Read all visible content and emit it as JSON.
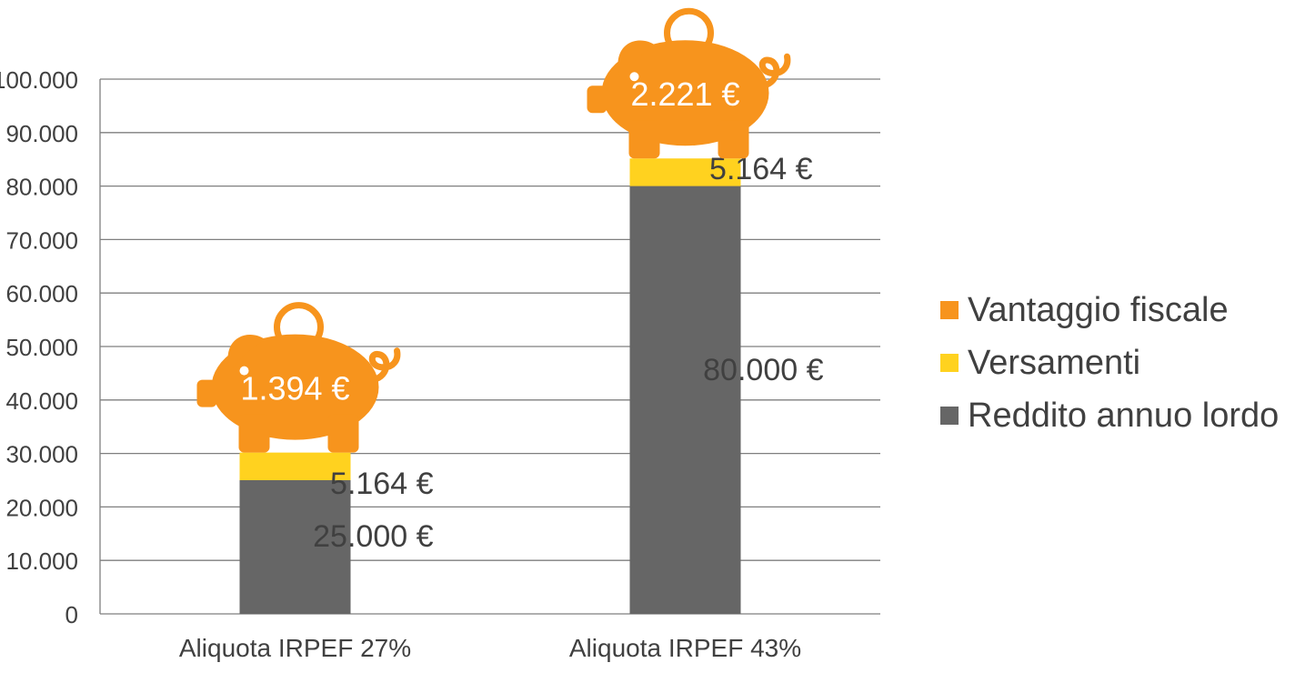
{
  "chart_data": {
    "type": "bar",
    "stacked": true,
    "categories": [
      "Aliquota IRPEF 27%",
      "Aliquota IRPEF 43%"
    ],
    "series": [
      {
        "name": "Reddito annuo lordo",
        "values": [
          25000,
          80000
        ],
        "color": "#666666",
        "labels": [
          "25.000 €",
          "80.000 €"
        ]
      },
      {
        "name": "Versamenti",
        "values": [
          5164,
          5164
        ],
        "color": "#FFD21F",
        "labels": [
          "5.164 €",
          "5.164 €"
        ]
      },
      {
        "name": "Vantaggio fiscale",
        "values": [
          1394,
          2221
        ],
        "color": "#F7941D",
        "labels": [
          "1.394 €",
          "2.221 €"
        ],
        "marker": "piggy-bank-icon"
      }
    ],
    "ylim": [
      0,
      100000
    ],
    "yticks": [
      0,
      10000,
      20000,
      30000,
      40000,
      50000,
      60000,
      70000,
      80000,
      90000,
      100000
    ],
    "ytick_labels": [
      "0",
      "10.000",
      "20.000",
      "30.000",
      "40.000",
      "50.000",
      "60.000",
      "70.000",
      "80.000",
      "90.000",
      "100.000"
    ],
    "grid": true,
    "legend_position": "right",
    "legend_order": [
      "Vantaggio fiscale",
      "Versamenti",
      "Reddito annuo lordo"
    ]
  }
}
